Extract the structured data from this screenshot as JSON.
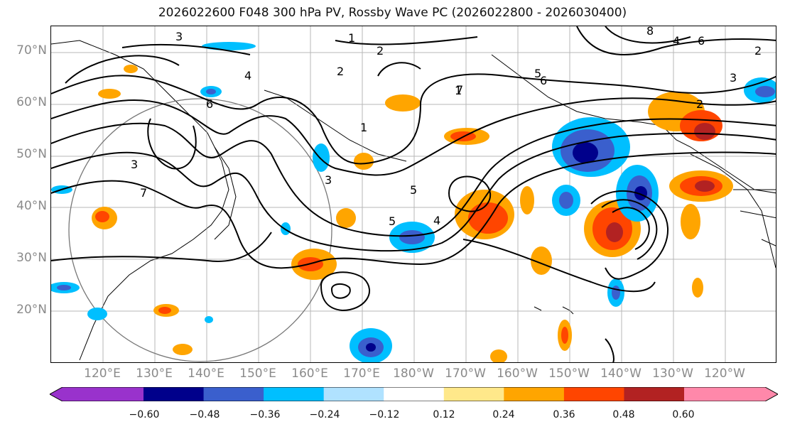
{
  "title": "2026022600 F048 300 hPa PV, Rossby Wave PC (2026022800 - 2026030400)",
  "lat_labels": [
    "70°N",
    "60°N",
    "50°N",
    "40°N",
    "30°N",
    "20°N"
  ],
  "lon_labels": [
    "120°E",
    "130°E",
    "140°E",
    "150°E",
    "160°E",
    "170°E",
    "180°W",
    "170°W",
    "160°W",
    "150°W",
    "140°W",
    "130°W",
    "120°W"
  ],
  "contour_labels": [
    "3",
    "1",
    "2",
    "4",
    "6",
    "5",
    "7",
    "8",
    "3",
    "2",
    "5",
    "4",
    "6",
    "1",
    "3",
    "2",
    "5",
    "4",
    "7",
    "3",
    "6",
    "2",
    "1"
  ],
  "colorbar": {
    "ticks": [
      "−0.60",
      "−0.48",
      "−0.36",
      "−0.24",
      "−0.12",
      "0.12",
      "0.24",
      "0.36",
      "0.48",
      "0.60"
    ],
    "colors": [
      "#9932cc",
      "#00008b",
      "#3a5fcd",
      "#00bfff",
      "#b0e2ff",
      "#ffffff",
      "#ffe88a",
      "#ffa500",
      "#ff4500",
      "#b22222",
      "#ff88aa"
    ]
  }
}
